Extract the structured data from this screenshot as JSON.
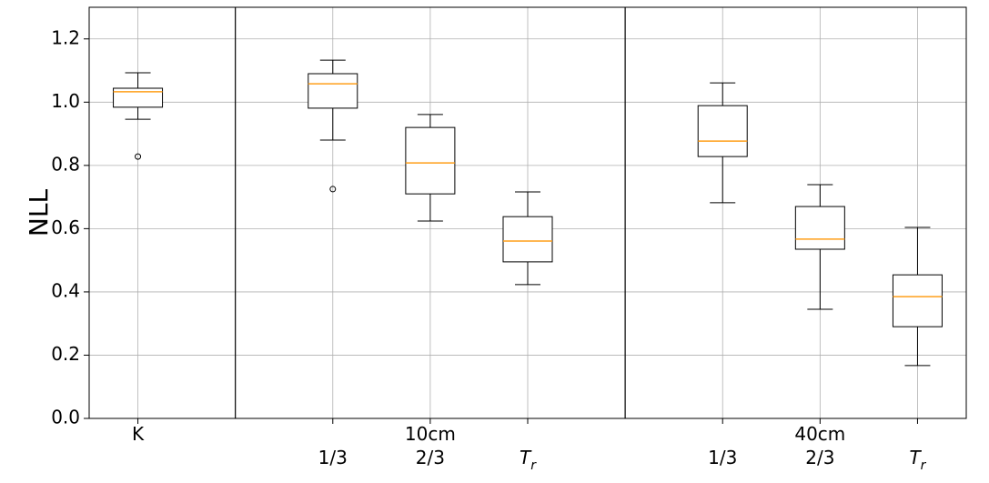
{
  "chart_data": {
    "type": "boxplot",
    "y_label": "NLL",
    "categories": [
      "K",
      "1/3",
      "2/3",
      "T_r",
      "1/3",
      "2/3",
      "T_r"
    ],
    "positions": [
      1,
      3,
      4,
      5,
      7,
      8,
      9
    ],
    "xlim": [
      0.5,
      9.5
    ],
    "separators": [
      2,
      6
    ],
    "groups": [
      {
        "label": "10cm",
        "position": 4
      },
      {
        "label": "40cm",
        "position": 8
      }
    ],
    "boxes": [
      {
        "whislo": 0.946,
        "q1": 0.984,
        "med": 1.033,
        "q3": 1.044,
        "whishi": 1.093,
        "fliers": [
          0.828
        ]
      },
      {
        "whislo": 0.88,
        "q1": 0.981,
        "med": 1.058,
        "q3": 1.09,
        "whishi": 1.133,
        "fliers": [
          0.725
        ]
      },
      {
        "whislo": 0.624,
        "q1": 0.71,
        "med": 0.808,
        "q3": 0.92,
        "whishi": 0.961,
        "fliers": []
      },
      {
        "whislo": 0.423,
        "q1": 0.495,
        "med": 0.561,
        "q3": 0.638,
        "whishi": 0.716,
        "fliers": []
      },
      {
        "whislo": 0.682,
        "q1": 0.828,
        "med": 0.877,
        "q3": 0.989,
        "whishi": 1.061,
        "fliers": []
      },
      {
        "whislo": 0.345,
        "q1": 0.535,
        "med": 0.567,
        "q3": 0.67,
        "whishi": 0.739,
        "fliers": []
      },
      {
        "whislo": 0.167,
        "q1": 0.29,
        "med": 0.385,
        "q3": 0.454,
        "whishi": 0.604,
        "fliers": []
      }
    ],
    "box_color": "#000000",
    "median_color": "#ff9f1a",
    "ylim": [
      0,
      1.3
    ],
    "yticks": [
      {
        "value": 0,
        "label": "0.0"
      },
      0.2,
      0.4,
      0.6,
      0.8,
      {
        "value": 1,
        "label": "1.0"
      },
      1.2
    ],
    "grid": true
  }
}
